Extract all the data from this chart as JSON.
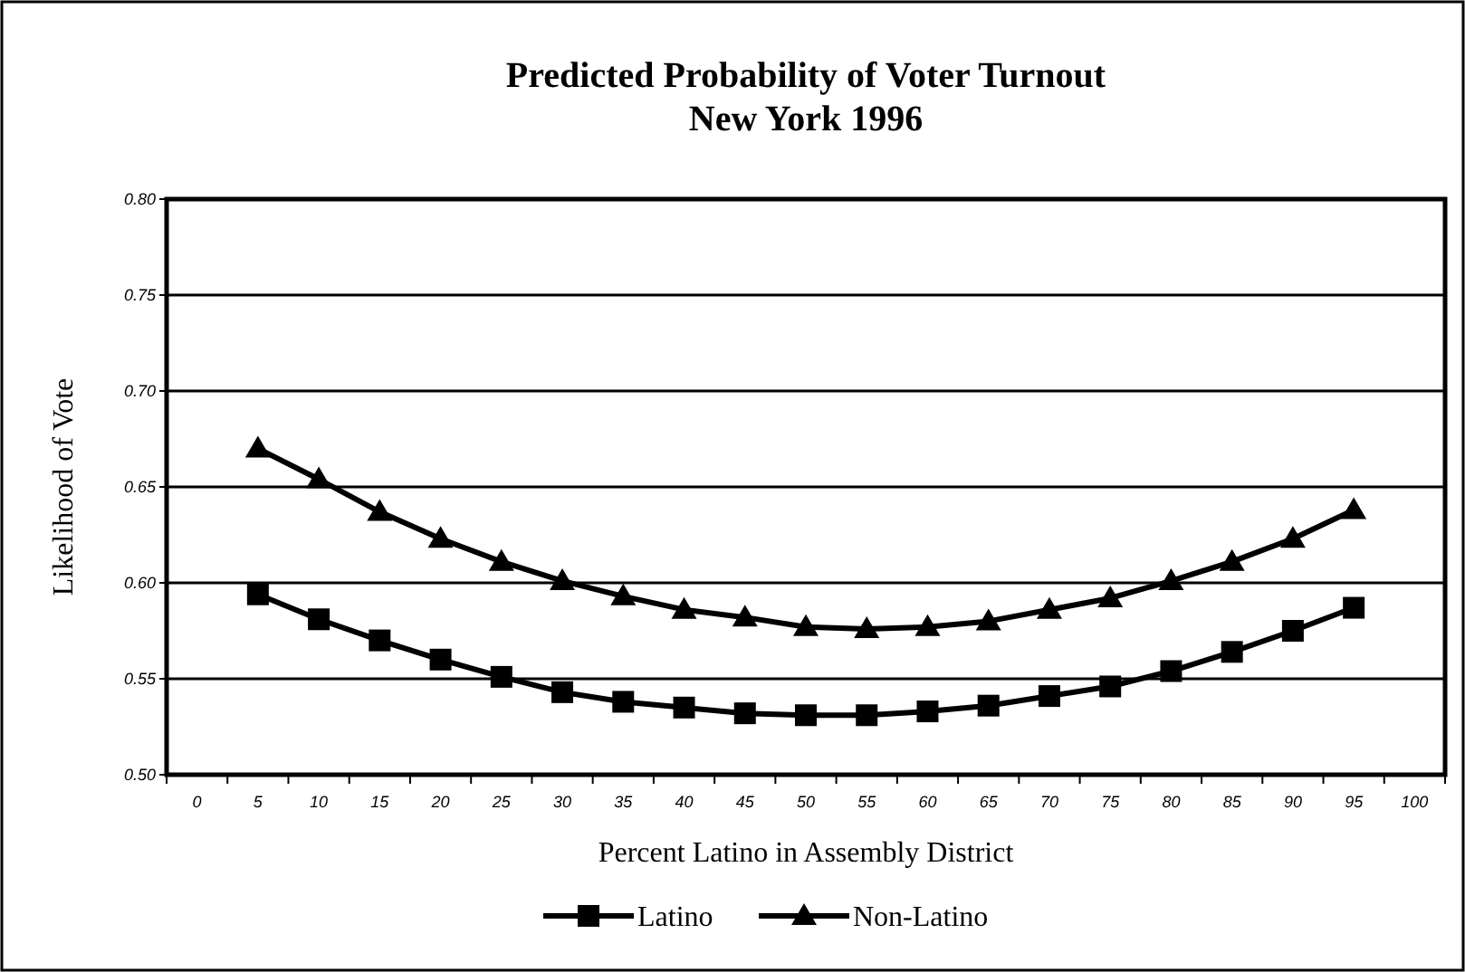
{
  "chart_data": {
    "type": "line",
    "title": "Predicted Probability of Voter Turnout\nNew York 1996",
    "xlabel": "Percent Latino in Assembly District",
    "ylabel": "Likelihood of Vote",
    "categories": [
      "0",
      "5",
      "10",
      "15",
      "20",
      "25",
      "30",
      "35",
      "40",
      "45",
      "50",
      "55",
      "60",
      "65",
      "70",
      "75",
      "80",
      "85",
      "90",
      "95",
      "100"
    ],
    "series": [
      {
        "name": "Latino",
        "color": "#000000",
        "marker": "square",
        "values": [
          null,
          0.594,
          0.581,
          0.57,
          0.56,
          0.551,
          0.543,
          0.538,
          0.535,
          0.532,
          0.531,
          0.531,
          0.533,
          0.536,
          0.541,
          0.546,
          0.554,
          0.564,
          0.575,
          0.587,
          null
        ]
      },
      {
        "name": "Non-Latino",
        "color": "#000000",
        "marker": "triangle",
        "values": [
          null,
          0.67,
          0.654,
          0.637,
          0.623,
          0.611,
          0.601,
          0.593,
          0.586,
          0.582,
          0.577,
          0.576,
          0.577,
          0.58,
          0.586,
          0.592,
          0.601,
          0.611,
          0.623,
          0.638,
          null
        ]
      }
    ],
    "ylim": [
      0.5,
      0.8
    ],
    "yticks": [
      {
        "value": 0.5,
        "label": "0.50"
      },
      {
        "value": 0.55,
        "label": "0.55"
      },
      {
        "value": 0.6,
        "label": "0.60"
      },
      {
        "value": 0.65,
        "label": "0.65"
      },
      {
        "value": 0.7,
        "label": "0.70"
      },
      {
        "value": 0.75,
        "label": "0.75"
      },
      {
        "value": 0.8,
        "label": "0.80"
      }
    ],
    "grid": "y",
    "legend": "bottom",
    "line_style": "solid"
  }
}
